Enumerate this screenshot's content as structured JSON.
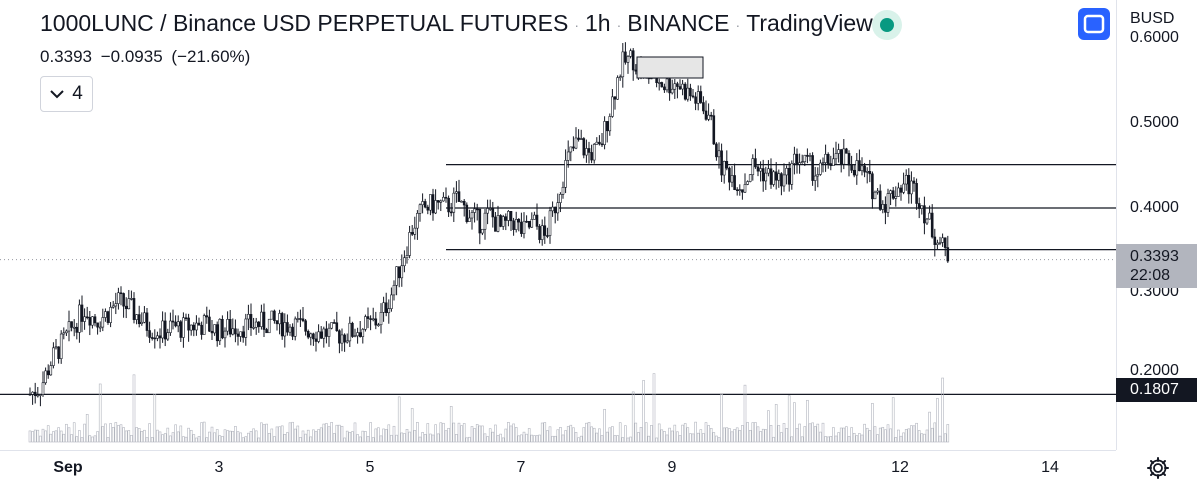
{
  "header": {
    "symbol": "1000LUNC / Binance USD PERPETUAL FUTURES",
    "interval": "1h",
    "exchange": "BINANCE",
    "source": "TradingView",
    "status_color": "#089981"
  },
  "ohlc": {
    "price": "0.3393",
    "change": "−0.0935",
    "change_pct": "(−21.60%)"
  },
  "indicators_toggle": {
    "count": "4",
    "icon": "chevron-down-icon"
  },
  "price_axis": {
    "currency": "BUSD",
    "labels": [
      "0.6000",
      "0.5000",
      "0.4000",
      "0.3000",
      "0.2000"
    ],
    "current_price": "0.3393",
    "countdown": "22:08",
    "horizontal_level": "0.1807",
    "fit_button_icon": "fit-screen-icon"
  },
  "time_axis": {
    "labels": [
      "Sep",
      "3",
      "5",
      "7",
      "9",
      "12",
      "14"
    ],
    "settings_icon": "gear-icon"
  },
  "colors": {
    "candles": "#131722",
    "volume": "#b2b5be",
    "lines": "#131722",
    "accent": "#2962ff"
  },
  "chart_data": {
    "type": "line",
    "series": [
      {
        "values": [
          0.181,
          0.19,
          0.222,
          0.242,
          0.262,
          0.282,
          0.268,
          0.275,
          0.29,
          0.283,
          0.271,
          0.259,
          0.254,
          0.26,
          0.259,
          0.262,
          0.263,
          0.256,
          0.258,
          0.26,
          0.262,
          0.264,
          0.265,
          0.263,
          0.263,
          0.259,
          0.255,
          0.253,
          0.251,
          0.252,
          0.258,
          0.262,
          0.27,
          0.3,
          0.34,
          0.38,
          0.4,
          0.405,
          0.401,
          0.41,
          0.394,
          0.383,
          0.393,
          0.375,
          0.387,
          0.371,
          0.383,
          0.365,
          0.405,
          0.455,
          0.478,
          0.464,
          0.468,
          0.519,
          0.569,
          0.577,
          0.557,
          0.554,
          0.545,
          0.548,
          0.536,
          0.525,
          0.51,
          0.45,
          0.44,
          0.425,
          0.45,
          0.442,
          0.434,
          0.432,
          0.46,
          0.45,
          0.44,
          0.457,
          0.457,
          0.453,
          0.442,
          0.422,
          0.405,
          0.422,
          0.43,
          0.418,
          0.385,
          0.36,
          0.34
        ]
      }
    ],
    "ylim": [
      0.16,
      0.6
    ],
    "horizontal_lines": [
      0.451,
      0.4,
      0.351,
      0.1807
    ],
    "ylabel": "BUSD"
  }
}
